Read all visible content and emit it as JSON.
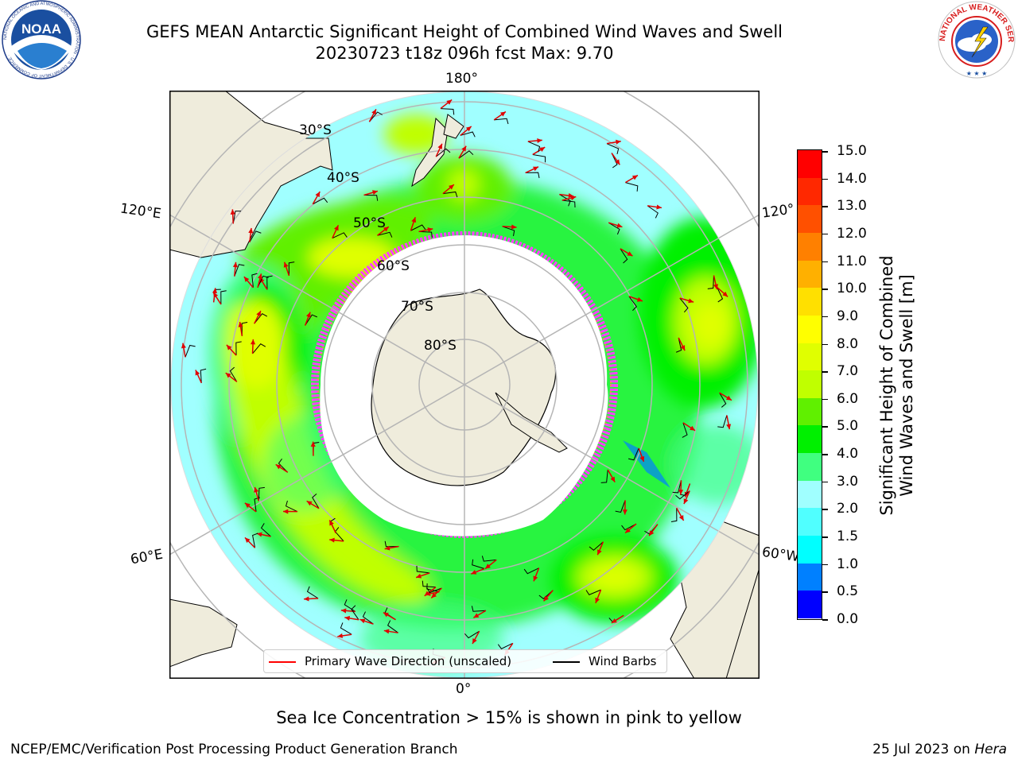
{
  "header": {
    "title_line1": "GEFS MEAN Antarctic Significant Height of Combined Wind Waves and Swell",
    "title_line2": "20230723 t18z 096h fcst   Max: 9.70"
  },
  "logos": {
    "noaa_text": "NOAA",
    "noaa_ring": "NATIONAL OCEANIC AND ATMOSPHERIC ADMINISTRATION · U.S. DEPARTMENT OF COMMERCE ·",
    "nws_ring": "NATIONAL WEATHER SERVICE"
  },
  "map": {
    "longitude_labels": {
      "top": "180°",
      "bottom": "0°",
      "left_upper": "120°E",
      "left_lower": "60°E",
      "right_upper": "120°",
      "right_lower": "60°W"
    },
    "latitude_labels": [
      "30°S",
      "40°S",
      "50°S",
      "60°S",
      "70°S",
      "80°S"
    ],
    "colors": {
      "land": "#efecdc",
      "ocean_low": "#9ffcff",
      "ice_edge": "#ff40ff",
      "arrow": "#ff0000",
      "barb": "#000000"
    }
  },
  "colorbar": {
    "label_line1": "Significant Height of Combined",
    "label_line2": "Wind Waves and Swell [m]",
    "ticks": [
      "15.0",
      "14.0",
      "13.0",
      "12.0",
      "11.0",
      "10.0",
      "9.0",
      "8.0",
      "7.0",
      "6.0",
      "5.0",
      "4.0",
      "3.0",
      "2.0",
      "1.5",
      "1.0",
      "0.5",
      "0.0"
    ],
    "bands": [
      {
        "range": "14.0-15.0",
        "color": "#ff0000"
      },
      {
        "range": "13.0-14.0",
        "color": "#ff2800"
      },
      {
        "range": "12.0-13.0",
        "color": "#ff5000"
      },
      {
        "range": "11.0-12.0",
        "color": "#ff8000"
      },
      {
        "range": "10.0-11.0",
        "color": "#ffb000"
      },
      {
        "range": "9.0-10.0",
        "color": "#ffe000"
      },
      {
        "range": "8.0-9.0",
        "color": "#ffff00"
      },
      {
        "range": "7.0-8.0",
        "color": "#e0ff00"
      },
      {
        "range": "6.0-7.0",
        "color": "#c0ff00"
      },
      {
        "range": "5.0-6.0",
        "color": "#60f000"
      },
      {
        "range": "4.0-5.0",
        "color": "#00f000"
      },
      {
        "range": "3.0-4.0",
        "color": "#40ff80"
      },
      {
        "range": "2.0-3.0",
        "color": "#a0ffff"
      },
      {
        "range": "1.5-2.0",
        "color": "#50ffff"
      },
      {
        "range": "1.0-1.5",
        "color": "#00ffff"
      },
      {
        "range": "0.5-1.0",
        "color": "#0080ff"
      },
      {
        "range": "0.0-0.5",
        "color": "#0000ff"
      }
    ]
  },
  "legend": {
    "wave_direction": "Primary Wave Direction (unscaled)",
    "wind_barbs": "Wind Barbs"
  },
  "note": "Sea Ice Concentration > 15% is shown in pink to yellow",
  "footer": {
    "left": "NCEP/EMC/Verification Post Processing Product Generation Branch",
    "right_date": "25 Jul 2023 on ",
    "right_host": "Hera"
  }
}
